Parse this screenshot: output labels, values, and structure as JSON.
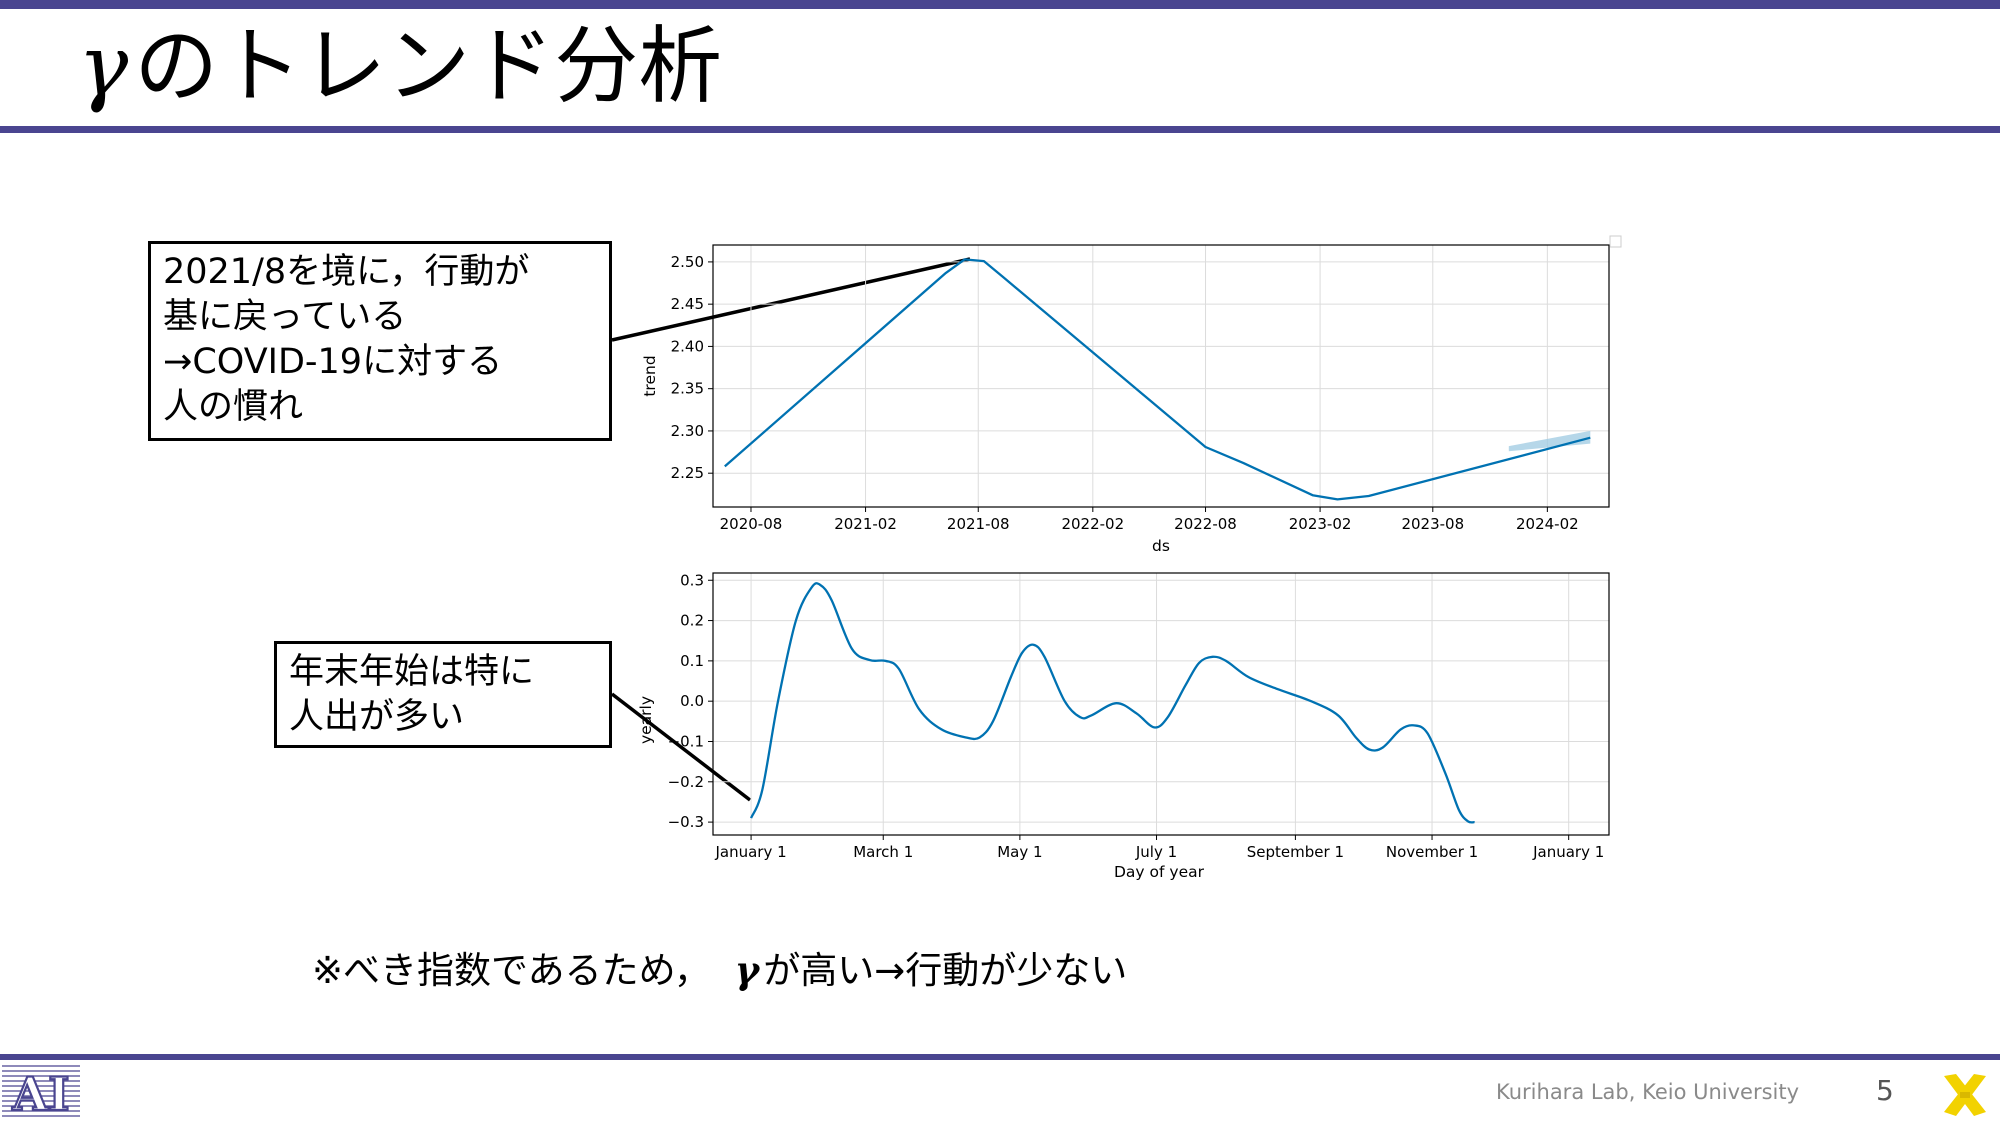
{
  "slide": {
    "title": "のトレンド分析",
    "title_symbol": "γ",
    "page_number": "5",
    "footer_credit": "Kurihara Lab, Keio University",
    "lab_logo_text": "AI",
    "accent_color": "#4a4590"
  },
  "callouts": {
    "trend": [
      "2021/8を境に，行動が",
      "基に戻っている",
      "→COVID-19に対する",
      "人の慣れ"
    ],
    "yearly": [
      "年末年始は特に",
      "人出が多い"
    ]
  },
  "note": {
    "prefix": "※べき指数であるため，",
    "symbol": "γ",
    "suffix": "が高い→行動が少ない"
  },
  "chart_data": [
    {
      "type": "line",
      "xlabel": "ds",
      "ylabel": "trend",
      "line_color": "#0072b2",
      "band_color": "#9ecae1",
      "grid": true,
      "x_ticks": [
        "2020-08",
        "2021-02",
        "2021-08",
        "2022-02",
        "2022-08",
        "2023-02",
        "2023-08",
        "2024-02"
      ],
      "xlim": [
        "2020-06-01",
        "2024-05-10"
      ],
      "ylim": [
        2.21,
        2.52
      ],
      "y_ticks": [
        2.25,
        2.3,
        2.35,
        2.4,
        2.45,
        2.5
      ],
      "points": [
        {
          "x": "2020-06-20",
          "y": 2.258
        },
        {
          "x": "2021-06-10",
          "y": 2.487
        },
        {
          "x": "2021-07-10",
          "y": 2.503
        },
        {
          "x": "2021-08-10",
          "y": 2.501
        },
        {
          "x": "2021-09-10",
          "y": 2.482
        },
        {
          "x": "2022-08-01",
          "y": 2.281
        },
        {
          "x": "2022-10-01",
          "y": 2.262
        },
        {
          "x": "2023-01-20",
          "y": 2.224
        },
        {
          "x": "2023-03-01",
          "y": 2.219
        },
        {
          "x": "2023-04-20",
          "y": 2.223
        },
        {
          "x": "2024-04-10",
          "y": 2.292
        }
      ],
      "uncertainty_band": [
        {
          "x": "2023-12-01",
          "low": 2.276,
          "high": 2.282
        },
        {
          "x": "2024-04-10",
          "low": 2.285,
          "high": 2.3
        }
      ]
    },
    {
      "type": "line",
      "xlabel": "Day of year",
      "ylabel": "yearly",
      "line_color": "#0072b2",
      "grid": true,
      "x_ticks": [
        "January 1",
        "March 1",
        "May 1",
        "July 1",
        "September 1",
        "November 1",
        "January 1"
      ],
      "x_tick_days": [
        0,
        59,
        120,
        181,
        243,
        304,
        365
      ],
      "xlim": [
        -17,
        383
      ],
      "ylim": [
        -0.332,
        0.318
      ],
      "y_ticks": [
        0.3,
        0.2,
        0.1,
        0.0,
        -0.1,
        -0.2,
        -0.3
      ],
      "y_tick_labels": [
        "0.3",
        "0.2",
        "0.1",
        "0.0",
        "−0.1",
        "−0.2",
        "−0.3"
      ],
      "points": [
        {
          "x": 0,
          "y": -0.29
        },
        {
          "x": 5,
          "y": -0.22
        },
        {
          "x": 12,
          "y": 0.0
        },
        {
          "x": 20,
          "y": 0.2
        },
        {
          "x": 27,
          "y": 0.282
        },
        {
          "x": 31,
          "y": 0.288
        },
        {
          "x": 36,
          "y": 0.25
        },
        {
          "x": 45,
          "y": 0.13
        },
        {
          "x": 53,
          "y": 0.102
        },
        {
          "x": 60,
          "y": 0.1
        },
        {
          "x": 66,
          "y": 0.08
        },
        {
          "x": 75,
          "y": -0.02
        },
        {
          "x": 85,
          "y": -0.07
        },
        {
          "x": 96,
          "y": -0.09
        },
        {
          "x": 102,
          "y": -0.09
        },
        {
          "x": 108,
          "y": -0.05
        },
        {
          "x": 116,
          "y": 0.06
        },
        {
          "x": 121,
          "y": 0.12
        },
        {
          "x": 126,
          "y": 0.14
        },
        {
          "x": 131,
          "y": 0.11
        },
        {
          "x": 140,
          "y": 0.0
        },
        {
          "x": 147,
          "y": -0.04
        },
        {
          "x": 152,
          "y": -0.035
        },
        {
          "x": 163,
          "y": -0.005
        },
        {
          "x": 172,
          "y": -0.03
        },
        {
          "x": 180,
          "y": -0.065
        },
        {
          "x": 186,
          "y": -0.04
        },
        {
          "x": 194,
          "y": 0.04
        },
        {
          "x": 200,
          "y": 0.095
        },
        {
          "x": 206,
          "y": 0.11
        },
        {
          "x": 212,
          "y": 0.1
        },
        {
          "x": 222,
          "y": 0.06
        },
        {
          "x": 235,
          "y": 0.03
        },
        {
          "x": 250,
          "y": 0.0
        },
        {
          "x": 262,
          "y": -0.035
        },
        {
          "x": 270,
          "y": -0.09
        },
        {
          "x": 276,
          "y": -0.12
        },
        {
          "x": 282,
          "y": -0.115
        },
        {
          "x": 290,
          "y": -0.07
        },
        {
          "x": 296,
          "y": -0.06
        },
        {
          "x": 302,
          "y": -0.08
        },
        {
          "x": 310,
          "y": -0.18
        },
        {
          "x": 316,
          "y": -0.27
        },
        {
          "x": 320,
          "y": -0.298
        },
        {
          "x": 323,
          "y": -0.3
        }
      ]
    }
  ]
}
